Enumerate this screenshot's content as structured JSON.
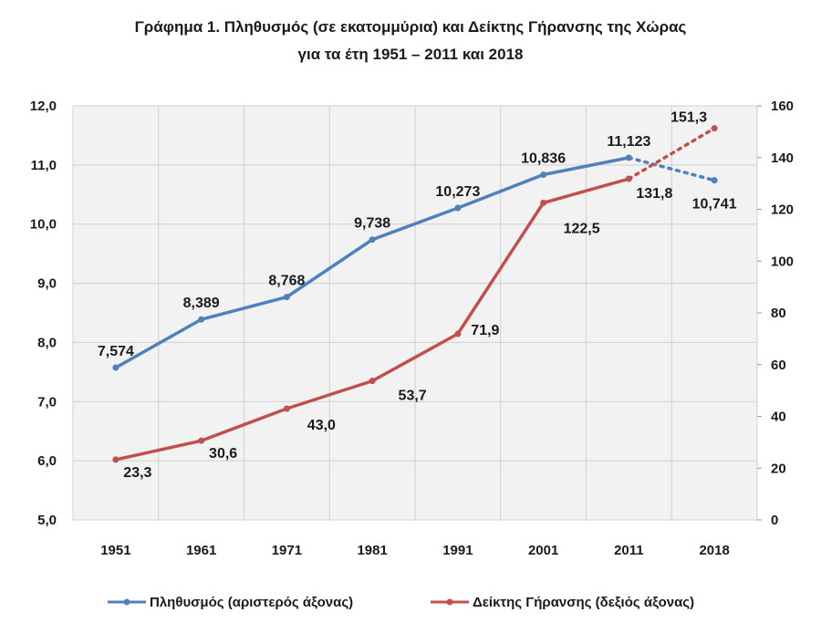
{
  "chart_data": {
    "type": "line",
    "title": "Γράφημα 1. Πληθυσμός (σε εκατομμύρια) και Δείκτης Γήρανσης της Χώρας",
    "subtitle": "για τα έτη 1951 – 2011 και 2018",
    "categories": [
      "1951",
      "1961",
      "1971",
      "1981",
      "1991",
      "2001",
      "2011",
      "2018"
    ],
    "y_left": {
      "range": [
        5,
        12
      ],
      "ticks": [
        "5,0",
        "6,0",
        "7,0",
        "8,0",
        "9,0",
        "10,0",
        "11,0",
        "12,0"
      ]
    },
    "y_right": {
      "range": [
        0,
        160
      ],
      "ticks": [
        "0",
        "20",
        "40",
        "60",
        "80",
        "100",
        "120",
        "140",
        "160"
      ]
    },
    "grid": true,
    "legend_placement": "bottom",
    "series": [
      {
        "name": "Πληθυσμός (αριστερός άξονας)",
        "axis": "left",
        "color": "#4f81bd",
        "values": [
          7.574,
          8.389,
          8.768,
          9.738,
          10.273,
          10.836,
          11.123,
          10.741
        ],
        "labels": [
          "7,574",
          "8,389",
          "8,768",
          "9,738",
          "10,273",
          "10,836",
          "11,123",
          "10,741"
        ],
        "dotted_last_segment": true
      },
      {
        "name": "Δείκτης Γήρανσης (δεξιός άξονας)",
        "axis": "right",
        "color": "#c0504d",
        "values": [
          23.3,
          30.6,
          43.0,
          53.7,
          71.9,
          122.5,
          131.8,
          151.3
        ],
        "labels": [
          "23,3",
          "30,6",
          "43,0",
          "53,7",
          "71,9",
          "122,5",
          "131,8",
          "151,3"
        ],
        "dotted_last_segment": true
      }
    ]
  }
}
